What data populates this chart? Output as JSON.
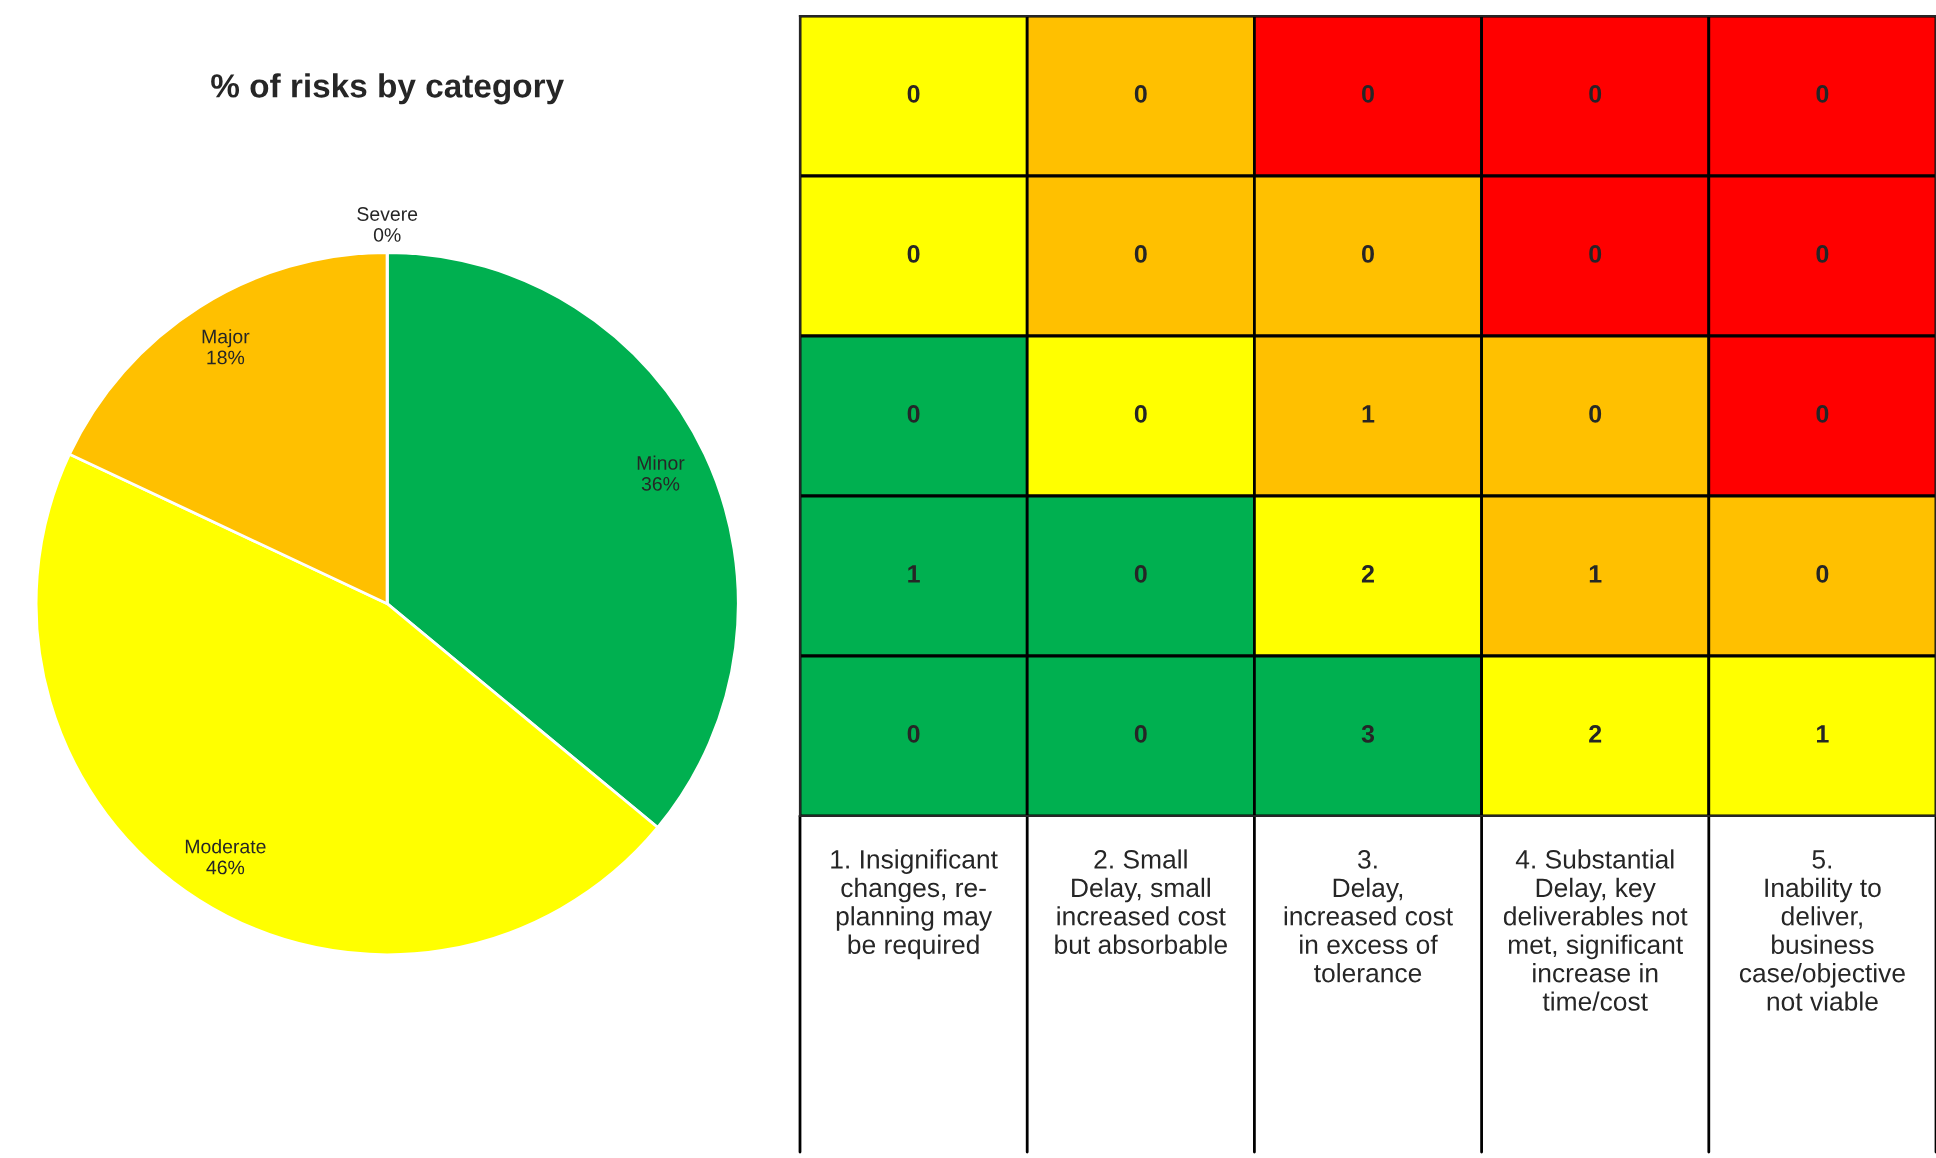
{
  "chart_data": [
    {
      "type": "pie",
      "title": "% of risks by category",
      "categories": [
        "Minor",
        "Moderate",
        "Major",
        "Severe"
      ],
      "values": [
        36,
        46,
        18,
        0
      ],
      "colors": [
        "#00b050",
        "#ffff00",
        "#ffc000",
        "#ff0000"
      ],
      "value_labels": [
        "36%",
        "46%",
        "18%",
        "0%"
      ],
      "legend": false
    },
    {
      "type": "heatmap",
      "categories": [
        "1. Insignificant\nchanges, re-\nplanning may\nbe required",
        "2. Small\nDelay, small\nincreased cost\nbut absorbable",
        "3.\nDelay,\nincreased cost\nin excess of\ntolerance",
        "4. Substantial\nDelay, key\ndeliverables not\nmet, significant\nincrease in\ntime/cost",
        "5.\nInability to\ndeliver,\nbusiness\ncase/objective\nnot viable"
      ],
      "y_categories": [
        null,
        null,
        null,
        null,
        null
      ],
      "cells": [
        [
          0,
          0,
          0,
          0,
          0
        ],
        [
          0,
          0,
          0,
          0,
          0
        ],
        [
          0,
          0,
          1,
          0,
          0
        ],
        [
          1,
          0,
          2,
          1,
          0
        ],
        [
          0,
          0,
          3,
          2,
          1
        ]
      ],
      "colors": [
        [
          "#ffff00",
          "#ffc000",
          "#ff0000",
          "#ff0000",
          "#ff0000"
        ],
        [
          "#ffff00",
          "#ffc000",
          "#ffc000",
          "#ff0000",
          "#ff0000"
        ],
        [
          "#00b050",
          "#ffff00",
          "#ffc000",
          "#ffc000",
          "#ff0000"
        ],
        [
          "#00b050",
          "#00b050",
          "#ffff00",
          "#ffc000",
          "#ffc000"
        ],
        [
          "#00b050",
          "#00b050",
          "#00b050",
          "#ffff00",
          "#ffff00"
        ]
      ],
      "data_labels": true
    }
  ]
}
